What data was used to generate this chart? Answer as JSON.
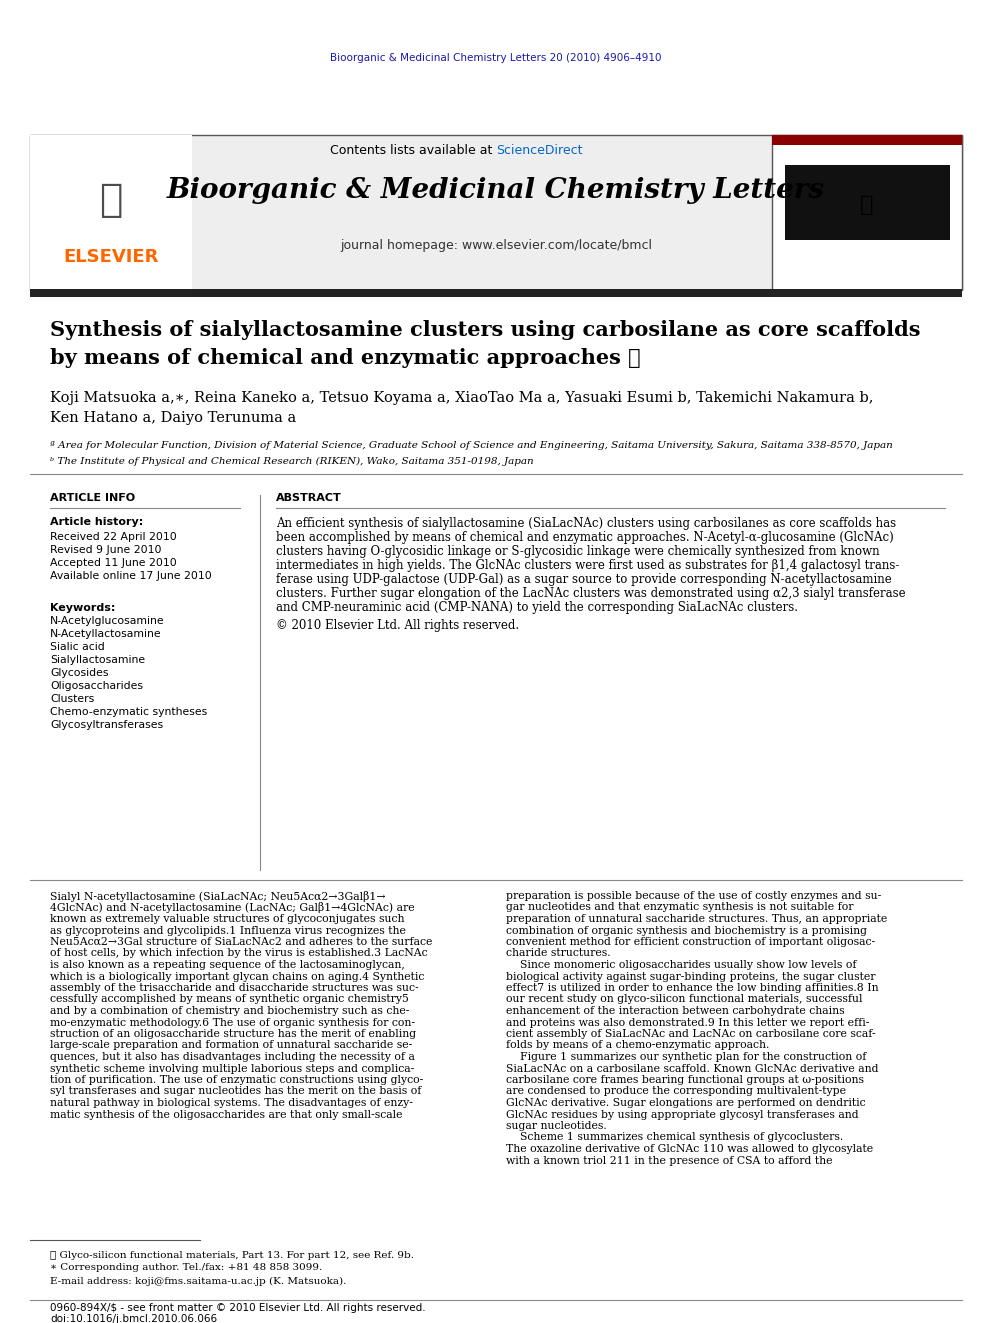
{
  "bg_color": "#ffffff",
  "top_journal_line": "Bioorganic & Medicinal Chemistry Letters 20 (2010) 4906–4910",
  "top_journal_color": "#1a1aaa",
  "header_bg": "#e8e8e8",
  "header_text_contents": "Contents lists available at ",
  "header_text_sciencedirect": "ScienceDirect",
  "header_sciencedirect_color": "#0066cc",
  "journal_title": "Bioorganic & Medicinal Chemistry Letters",
  "journal_homepage": "journal homepage: www.elsevier.com/locate/bmcl",
  "paper_title_line1": "Synthesis of sialyllactosamine clusters using carbosilane as core scaffolds",
  "paper_title_line2": "by means of chemical and enzymatic approaches ☆",
  "authors": "Koji Matsuoka a,∗, Reina Kaneko a, Tetsuo Koyama a, XiaoTao Ma a, Yasuaki Esumi b, Takemichi Nakamura b,",
  "authors_line2": "Ken Hatano a, Daiyo Terunuma a",
  "affil_a": "ª Area for Molecular Function, Division of Material Science, Graduate School of Science and Engineering, Saitama University, Sakura, Saitama 338-8570, Japan",
  "affil_b": "ᵇ The Institute of Physical and Chemical Research (RIKEN), Wako, Saitama 351-0198, Japan",
  "article_info_label": "ARTICLE INFO",
  "article_history_label": "Article history:",
  "received": "Received 22 April 2010",
  "revised": "Revised 9 June 2010",
  "accepted": "Accepted 11 June 2010",
  "available": "Available online 17 June 2010",
  "keywords_label": "Keywords:",
  "keywords": [
    "N-Acetylglucosamine",
    "N-Acetyllactosamine",
    "Sialic acid",
    "Sialyllactosamine",
    "Glycosides",
    "Oligosaccharides",
    "Clusters",
    "Chemo-enzymatic syntheses",
    "Glycosyltransferases"
  ],
  "abstract_label": "ABSTRACT",
  "abstract_text": "An efficient synthesis of sialyllactosamine (SiaLacNAc) clusters using carbosilanes as core scaffolds has\nbeen accomplished by means of chemical and enzymatic approaches. N-Acetyl-α-glucosamine (GlcNAc)\nclusters having O-glycosidic linkage or S-glycosidic linkage were chemically synthesized from known\nintermediates in high yields. The GlcNAc clusters were first used as substrates for β1,4 galactosyl trans-\nferase using UDP-galactose (UDP-Gal) as a sugar source to provide corresponding N-acetyllactosamine\nclusters. Further sugar elongation of the LacNAc clusters was demonstrated using α2,3 sialyl transferase\nand CMP-neuraminic acid (CMP-NANA) to yield the corresponding SiaLacNAc clusters.",
  "abstract_copyright": "© 2010 Elsevier Ltd. All rights reserved.",
  "body_col1_para1": "Sialyl N-acetyllactosamine (SiaLacNAc; Neu5Acα2→3Galβ1→\n4GlcNAc) and N-acetyllactosamine (LacNAc; Galβ1→4GlcNAc) are\nknown as extremely valuable structures of glycoconjugates such\nas glycoproteins and glycolipids.1 Influenza virus recognizes the\nNeu5Acα2→3Gal structure of SiaLacNAc2 and adheres to the surface\nof host cells, by which infection by the virus is established.3 LacNAc\nis also known as a repeating sequence of the lactosaminoglycan,\nwhich is a biologically important glycan chains on aging.4 Synthetic\nassembly of the trisaccharide and disaccharide structures was suc-\ncessfully accomplished by means of synthetic organic chemistry5\nand by a combination of chemistry and biochemistry such as che-\nmo-enzymatic methodology.6 The use of organic synthesis for con-\nstruction of an oligosaccharide structure has the merit of enabling\nlarge-scale preparation and formation of unnatural saccharide se-\nquences, but it also has disadvantages including the necessity of a\nsynthetic scheme involving multiple laborious steps and complica-\ntion of purification. The use of enzymatic constructions using glyco-\nsyl transferases and sugar nucleotides has the merit on the basis of\nnatural pathway in biological systems. The disadvantages of enzy-\nmatic synthesis of the oligosaccharides are that only small-scale",
  "body_col2_para1": "preparation is possible because of the use of costly enzymes and su-\ngar nucleotides and that enzymatic synthesis is not suitable for\npreparation of unnatural saccharide structures. Thus, an appropriate\ncombination of organic synthesis and biochemistry is a promising\nconvenient method for efficient construction of important oligosac-\ncharide structures.\n    Since monomeric oligosaccharides usually show low levels of\nbiological activity against sugar-binding proteins, the sugar cluster\neffect7 is utilized in order to enhance the low binding affinities.8 In\nour recent study on glyco-silicon functional materials, successful\nenhancement of the interaction between carbohydrate chains\nand proteins was also demonstrated.9 In this letter we report effi-\ncient assembly of SiaLacNAc and LacNAc on carbosilane core scaf-\nfolds by means of a chemo-enzymatic approach.\n    Figure 1 summarizes our synthetic plan for the construction of\nSiaLacNAc on a carbosilane scaffold. Known GlcNAc derivative and\ncarbosilane core frames bearing functional groups at ω-positions\nare condensed to produce the corresponding multivalent-type\nGlcNAc derivative. Sugar elongations are performed on dendritic\nGlcNAc residues by using appropriate glycosyl transferases and\nsugar nucleotides.\n    Scheme 1 summarizes chemical synthesis of glycoclusters.\nThe oxazoline derivative of GlcNAc 110 was allowed to glycosylate\nwith a known triol 211 in the presence of CSA to afford the",
  "footnote1": "☆ Glyco-silicon functional materials, Part 13. For part 12, see Ref. 9b.",
  "footnote2": "∗ Corresponding author. Tel./fax: +81 48 858 3099.",
  "footnote3": "E-mail address: koji@fms.saitama-u.ac.jp (K. Matsuoka).",
  "bottom_line1": "0960-894X/$ - see front matter © 2010 Elsevier Ltd. All rights reserved.",
  "bottom_line2": "doi:10.1016/j.bmcl.2010.06.066"
}
